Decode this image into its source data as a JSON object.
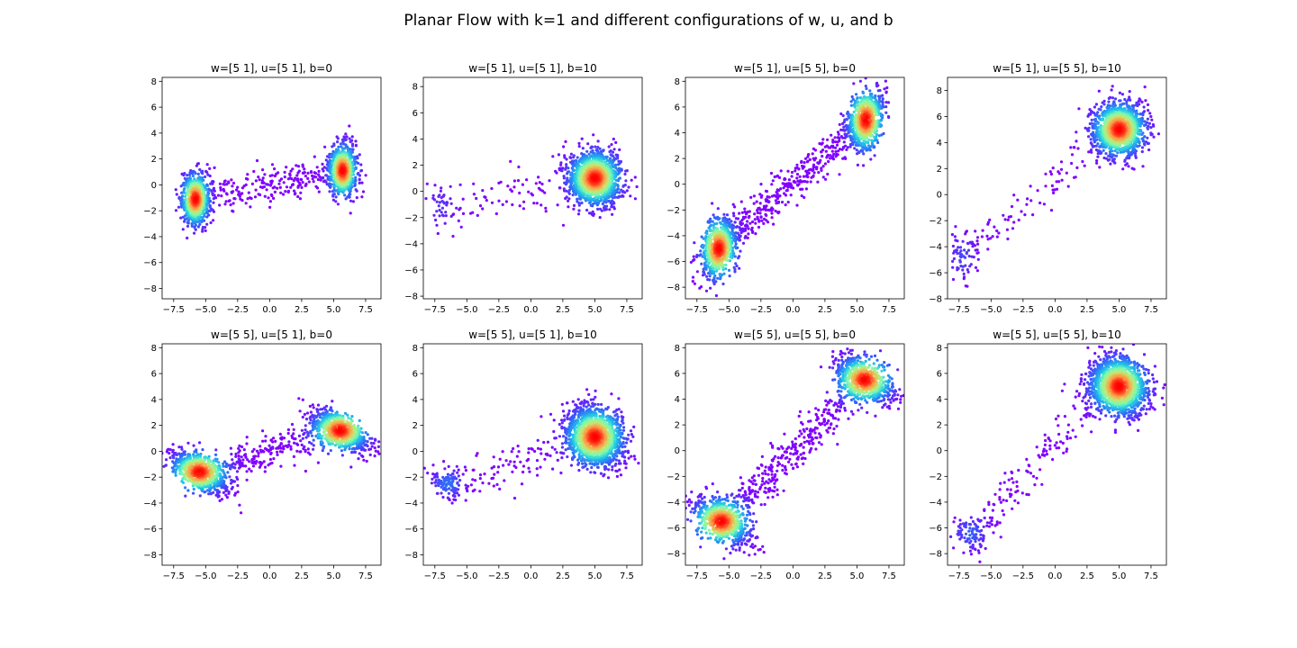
{
  "figure": {
    "title": "Planar Flow with k=1 and different configurations of w, u, and b"
  },
  "chart_data": [
    {
      "type": "scatter",
      "title": "w=[5 1], u=[5 1], b=0",
      "xlim": [
        -8.4,
        8.7
      ],
      "ylim": [
        -8.8,
        8.3
      ],
      "xticks": [
        -7.5,
        -5.0,
        -2.5,
        0.0,
        2.5,
        5.0,
        7.5
      ],
      "xtick_labels": [
        "−7.5",
        "−5.0",
        "−2.5",
        "0.0",
        "2.5",
        "5.0",
        "7.5"
      ],
      "yticks": [
        -8,
        -6,
        -4,
        -2,
        0,
        2,
        4,
        6,
        8
      ],
      "ytick_labels": [
        "−8",
        "−6",
        "−4",
        "−2",
        "0",
        "2",
        "4",
        "6",
        "8"
      ],
      "clusters": [
        {
          "center": [
            -5.8,
            -1.1
          ],
          "spread": [
            0.55,
            1.0
          ],
          "corr": 0.0,
          "count": 700
        },
        {
          "center": [
            5.7,
            1.1
          ],
          "spread": [
            0.55,
            1.0
          ],
          "corr": 0.0,
          "count": 700
        }
      ],
      "bridge": {
        "from": [
          -5.8,
          -1.1
        ],
        "to": [
          5.7,
          1.1
        ],
        "spread": 0.7,
        "count": 260
      },
      "colormap": "rainbow (density)"
    },
    {
      "type": "scatter",
      "title": "w=[5 1], u=[5 1], b=10",
      "xlim": [
        -8.4,
        8.7
      ],
      "ylim": [
        -8.2,
        8.7
      ],
      "xticks": [
        -7.5,
        -5.0,
        -2.5,
        0.0,
        2.5,
        5.0,
        7.5
      ],
      "xtick_labels": [
        "−7.5",
        "−5.0",
        "−2.5",
        "0.0",
        "2.5",
        "5.0",
        "7.5"
      ],
      "yticks": [
        -8,
        -6,
        -4,
        -2,
        0,
        2,
        4,
        6,
        8
      ],
      "ytick_labels": [
        "−8",
        "−6",
        "−4",
        "−2",
        "0",
        "2",
        "4",
        "6",
        "8"
      ],
      "clusters": [
        {
          "center": [
            5.0,
            1.0
          ],
          "spread": [
            1.0,
            1.0
          ],
          "corr": 0.0,
          "count": 1500
        },
        {
          "center": [
            -7.0,
            -1.2
          ],
          "spread": [
            0.6,
            0.9
          ],
          "corr": 0.0,
          "count": 40
        }
      ],
      "bridge": {
        "from": [
          -7.0,
          -1.2
        ],
        "to": [
          3.5,
          0.5
        ],
        "spread": 0.9,
        "count": 70
      },
      "colormap": "rainbow (density)"
    },
    {
      "type": "scatter",
      "title": "w=[5 1], u=[5 5], b=0",
      "xlim": [
        -8.4,
        8.7
      ],
      "ylim": [
        -8.9,
        8.3
      ],
      "xticks": [
        -7.5,
        -5.0,
        -2.5,
        0.0,
        2.5,
        5.0,
        7.5
      ],
      "xtick_labels": [
        "−7.5",
        "−5.0",
        "−2.5",
        "0.0",
        "2.5",
        "5.0",
        "7.5"
      ],
      "yticks": [
        -8,
        -6,
        -4,
        -2,
        0,
        2,
        4,
        6,
        8
      ],
      "ytick_labels": [
        "−8",
        "−6",
        "−4",
        "−2",
        "0",
        "2",
        "4",
        "6",
        "8"
      ],
      "clusters": [
        {
          "center": [
            -5.8,
            -5.0
          ],
          "spread": [
            0.7,
            1.2
          ],
          "corr": 0.3,
          "count": 700
        },
        {
          "center": [
            5.7,
            5.0
          ],
          "spread": [
            0.7,
            1.2
          ],
          "corr": 0.3,
          "count": 700
        }
      ],
      "bridge": {
        "from": [
          -5.8,
          -5.0
        ],
        "to": [
          5.7,
          5.0
        ],
        "spread": 0.7,
        "count": 420
      },
      "colormap": "rainbow (density)"
    },
    {
      "type": "scatter",
      "title": "w=[5 1], u=[5 5], b=10",
      "xlim": [
        -8.4,
        8.7
      ],
      "ylim": [
        -8.0,
        9.0
      ],
      "xticks": [
        -7.5,
        -5.0,
        -2.5,
        0.0,
        2.5,
        5.0,
        7.5
      ],
      "xtick_labels": [
        "−7.5",
        "−5.0",
        "−2.5",
        "0.0",
        "2.5",
        "5.0",
        "7.5"
      ],
      "yticks": [
        -8,
        -6,
        -4,
        -2,
        0,
        2,
        4,
        6,
        8
      ],
      "ytick_labels": [
        "−8",
        "−6",
        "−4",
        "−2",
        "0",
        "2",
        "4",
        "6",
        "8"
      ],
      "clusters": [
        {
          "center": [
            5.0,
            5.0
          ],
          "spread": [
            1.0,
            1.0
          ],
          "corr": 0.0,
          "count": 1500
        },
        {
          "center": [
            -7.2,
            -4.8
          ],
          "spread": [
            0.6,
            0.9
          ],
          "corr": 0.2,
          "count": 60
        }
      ],
      "bridge": {
        "from": [
          -7.2,
          -4.8
        ],
        "to": [
          3.2,
          3.5
        ],
        "spread": 0.7,
        "count": 90
      },
      "colormap": "rainbow (density)"
    },
    {
      "type": "scatter",
      "title": "w=[5 5], u=[5 1], b=0",
      "xlim": [
        -8.4,
        8.7
      ],
      "ylim": [
        -8.8,
        8.3
      ],
      "xticks": [
        -7.5,
        -5.0,
        -2.5,
        0.0,
        2.5,
        5.0,
        7.5
      ],
      "xtick_labels": [
        "−7.5",
        "−5.0",
        "−2.5",
        "0.0",
        "2.5",
        "5.0",
        "7.5"
      ],
      "yticks": [
        -8,
        -6,
        -4,
        -2,
        0,
        2,
        4,
        6,
        8
      ],
      "ytick_labels": [
        "−8",
        "−6",
        "−4",
        "−2",
        "0",
        "2",
        "4",
        "6",
        "8"
      ],
      "clusters": [
        {
          "center": [
            -5.5,
            -1.6
          ],
          "spread": [
            1.1,
            0.8
          ],
          "corr": -0.6,
          "count": 700
        },
        {
          "center": [
            5.5,
            1.6
          ],
          "spread": [
            1.1,
            0.8
          ],
          "corr": -0.6,
          "count": 700
        }
      ],
      "bridge": {
        "from": [
          -5.5,
          -1.6
        ],
        "to": [
          5.5,
          1.6
        ],
        "spread": 0.7,
        "count": 280
      },
      "colormap": "rainbow (density)"
    },
    {
      "type": "scatter",
      "title": "w=[5 5], u=[5 1], b=10",
      "xlim": [
        -8.4,
        8.7
      ],
      "ylim": [
        -8.8,
        8.3
      ],
      "xticks": [
        -7.5,
        -5.0,
        -2.5,
        0.0,
        2.5,
        5.0,
        7.5
      ],
      "xtick_labels": [
        "−7.5",
        "−5.0",
        "−2.5",
        "0.0",
        "2.5",
        "5.0",
        "7.5"
      ],
      "yticks": [
        -8,
        -6,
        -4,
        -2,
        0,
        2,
        4,
        6,
        8
      ],
      "ytick_labels": [
        "−8",
        "−6",
        "−4",
        "−2",
        "0",
        "2",
        "4",
        "6",
        "8"
      ],
      "clusters": [
        {
          "center": [
            5.0,
            1.1
          ],
          "spread": [
            1.1,
            1.1
          ],
          "corr": -0.2,
          "count": 1500
        },
        {
          "center": [
            -6.5,
            -2.5
          ],
          "spread": [
            0.7,
            0.6
          ],
          "corr": -0.3,
          "count": 110
        }
      ],
      "bridge": {
        "from": [
          -6.5,
          -2.5
        ],
        "to": [
          3.5,
          0.6
        ],
        "spread": 0.8,
        "count": 110
      },
      "colormap": "rainbow (density)"
    },
    {
      "type": "scatter",
      "title": "w=[5 5], u=[5 5], b=0",
      "xlim": [
        -8.4,
        8.7
      ],
      "ylim": [
        -8.9,
        8.3
      ],
      "xticks": [
        -7.5,
        -5.0,
        -2.5,
        0.0,
        2.5,
        5.0,
        7.5
      ],
      "xtick_labels": [
        "−7.5",
        "−5.0",
        "−2.5",
        "0.0",
        "2.5",
        "5.0",
        "7.5"
      ],
      "yticks": [
        -8,
        -6,
        -4,
        -2,
        0,
        2,
        4,
        6,
        8
      ],
      "ytick_labels": [
        "−8",
        "−6",
        "−4",
        "−2",
        "0",
        "2",
        "4",
        "6",
        "8"
      ],
      "clusters": [
        {
          "center": [
            -5.6,
            -5.5
          ],
          "spread": [
            1.1,
            0.9
          ],
          "corr": -0.5,
          "count": 700
        },
        {
          "center": [
            5.6,
            5.5
          ],
          "spread": [
            1.1,
            0.9
          ],
          "corr": -0.5,
          "count": 700
        }
      ],
      "bridge": {
        "from": [
          -5.6,
          -5.5
        ],
        "to": [
          5.6,
          5.5
        ],
        "spread": 0.8,
        "count": 420
      },
      "colormap": "rainbow (density)"
    },
    {
      "type": "scatter",
      "title": "w=[5 5], u=[5 5], b=10",
      "xlim": [
        -8.4,
        8.7
      ],
      "ylim": [
        -8.9,
        8.3
      ],
      "xticks": [
        -7.5,
        -5.0,
        -2.5,
        0.0,
        2.5,
        5.0,
        7.5
      ],
      "xtick_labels": [
        "−7.5",
        "−5.0",
        "−2.5",
        "0.0",
        "2.5",
        "5.0",
        "7.5"
      ],
      "yticks": [
        -8,
        -6,
        -4,
        -2,
        0,
        2,
        4,
        6,
        8
      ],
      "ytick_labels": [
        "−8",
        "−6",
        "−4",
        "−2",
        "0",
        "2",
        "4",
        "6",
        "8"
      ],
      "clusters": [
        {
          "center": [
            5.0,
            5.0
          ],
          "spread": [
            1.1,
            1.1
          ],
          "corr": -0.2,
          "count": 1500
        },
        {
          "center": [
            -6.6,
            -6.4
          ],
          "spread": [
            0.7,
            0.7
          ],
          "corr": -0.2,
          "count": 90
        }
      ],
      "bridge": {
        "from": [
          -6.6,
          -6.4
        ],
        "to": [
          3.2,
          3.5
        ],
        "spread": 0.8,
        "count": 140
      },
      "colormap": "rainbow (density)"
    }
  ]
}
